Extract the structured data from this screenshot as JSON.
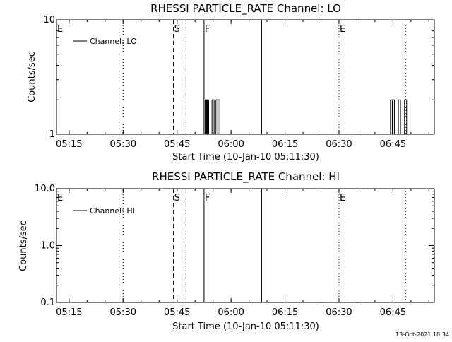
{
  "footer_timestamp": "13-Oct-2021 18:34",
  "chart_data": [
    {
      "type": "line",
      "title": "RHESSI PARTICLE_RATE Channel: LO",
      "xlabel": "Start Time (10-Jan-10 05:11:30)",
      "ylabel": "Counts/sec",
      "x_unit": "minutes since 05:11:30",
      "xlim": [
        0,
        105
      ],
      "x_ticks": [
        {
          "label": "05:15",
          "x": 3.5
        },
        {
          "label": "05:30",
          "x": 18.5
        },
        {
          "label": "05:45",
          "x": 33.5
        },
        {
          "label": "06:00",
          "x": 48.5
        },
        {
          "label": "06:15",
          "x": 63.5
        },
        {
          "label": "06:30",
          "x": 78.5
        },
        {
          "label": "06:45",
          "x": 93.5
        }
      ],
      "yscale": "log",
      "ylim": [
        1,
        10
      ],
      "y_tick_labels": [
        "1",
        "10"
      ],
      "legend_label": "Channel: LO",
      "legend_position": "top-left",
      "markers": [
        {
          "label": "E",
          "x": 0,
          "style": "dotted"
        },
        {
          "label": "",
          "x": 18.5,
          "style": "dotted"
        },
        {
          "label": "S",
          "x": 32.5,
          "style": "dashed"
        },
        {
          "label": "",
          "x": 36.0,
          "style": "dashed"
        },
        {
          "label": "F",
          "x": 41.0,
          "style": "solid"
        },
        {
          "label": "",
          "x": 57.0,
          "style": "solid"
        },
        {
          "label": "E",
          "x": 78.5,
          "style": "dotted"
        },
        {
          "label": "",
          "x": 97.0,
          "style": "dotted"
        }
      ],
      "spikes": [
        {
          "x": 41.6,
          "y": 2
        },
        {
          "x": 42.0,
          "y": 2
        },
        {
          "x": 43.5,
          "y": 2
        },
        {
          "x": 44.6,
          "y": 2
        },
        {
          "x": 45.1,
          "y": 2
        },
        {
          "x": 93.1,
          "y": 2
        },
        {
          "x": 93.6,
          "y": 2
        },
        {
          "x": 95.3,
          "y": 2
        },
        {
          "x": 97.0,
          "y": 2
        }
      ]
    },
    {
      "type": "line",
      "title": "RHESSI PARTICLE_RATE Channel: HI",
      "xlabel": "Start Time (10-Jan-10 05:11:30)",
      "ylabel": "Counts/sec",
      "x_unit": "minutes since 05:11:30",
      "xlim": [
        0,
        105
      ],
      "x_ticks": [
        {
          "label": "05:15",
          "x": 3.5
        },
        {
          "label": "05:30",
          "x": 18.5
        },
        {
          "label": "05:45",
          "x": 33.5
        },
        {
          "label": "06:00",
          "x": 48.5
        },
        {
          "label": "06:15",
          "x": 63.5
        },
        {
          "label": "06:30",
          "x": 78.5
        },
        {
          "label": "06:45",
          "x": 93.5
        }
      ],
      "yscale": "log",
      "ylim": [
        0.1,
        10
      ],
      "y_tick_labels": [
        "0.1",
        "1.0",
        "10.0"
      ],
      "legend_label": "Channel: HI",
      "legend_position": "top-left",
      "markers": [
        {
          "label": "E",
          "x": 0,
          "style": "dotted"
        },
        {
          "label": "",
          "x": 18.5,
          "style": "dotted"
        },
        {
          "label": "S",
          "x": 32.5,
          "style": "dashed"
        },
        {
          "label": "",
          "x": 36.0,
          "style": "dashed"
        },
        {
          "label": "F",
          "x": 41.0,
          "style": "solid"
        },
        {
          "label": "",
          "x": 57.0,
          "style": "solid"
        },
        {
          "label": "E",
          "x": 78.5,
          "style": "dotted"
        },
        {
          "label": "",
          "x": 97.0,
          "style": "dotted"
        }
      ],
      "spikes": []
    }
  ]
}
